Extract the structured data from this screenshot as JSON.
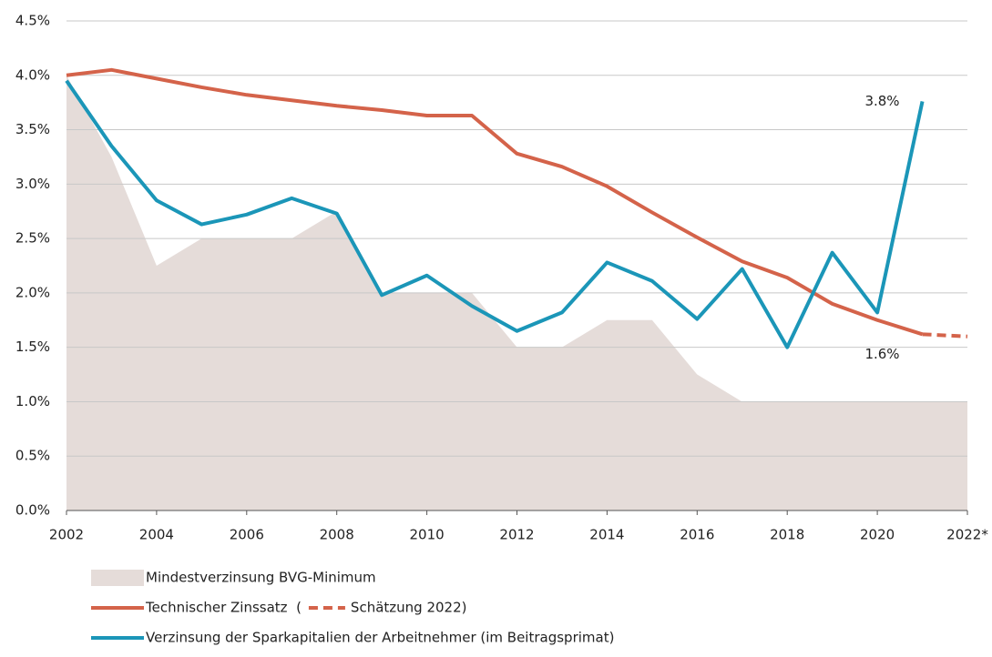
{
  "chart_data": {
    "type": "line",
    "x": [
      2002,
      2003,
      2004,
      2005,
      2006,
      2007,
      2008,
      2009,
      2010,
      2011,
      2012,
      2013,
      2014,
      2015,
      2016,
      2017,
      2018,
      2019,
      2020,
      2021,
      2022
    ],
    "xlim": [
      2002,
      2022
    ],
    "xticks": [
      2002,
      2004,
      2006,
      2008,
      2010,
      2012,
      2014,
      2016,
      2018,
      2020,
      {
        "value": 2022,
        "label": "2022*"
      }
    ],
    "ylim": [
      0,
      4.5
    ],
    "yticks": [
      {
        "value": 0,
        "label": "0.0%"
      },
      {
        "value": 0.5,
        "label": "0.5%"
      },
      {
        "value": 1,
        "label": "1.0%"
      },
      {
        "value": 1.5,
        "label": "1.5%"
      },
      {
        "value": 2,
        "label": "2.0%"
      },
      {
        "value": 2.5,
        "label": "2.5%"
      },
      {
        "value": 3,
        "label": "3.0%"
      },
      {
        "value": 3.5,
        "label": "3.5%"
      },
      {
        "value": 4,
        "label": "4.0%"
      },
      {
        "value": 4.5,
        "label": "4.5%"
      }
    ],
    "grid": true,
    "legend": "bottom-left",
    "series": [
      {
        "name": "Mindestverzinsung BVG-Minimum",
        "type": "area",
        "color": "#e5dcd9",
        "values": [
          4.0,
          3.25,
          2.25,
          2.5,
          2.5,
          2.5,
          2.75,
          2.0,
          2.0,
          2.0,
          1.5,
          1.5,
          1.75,
          1.75,
          1.25,
          1.0,
          1.0,
          1.0,
          1.0,
          1.0,
          1.0
        ]
      },
      {
        "name": "Technischer Zinssatz  (",
        "type": "line",
        "color": "#d4634a",
        "values": [
          4.0,
          4.05,
          3.97,
          3.89,
          3.82,
          3.77,
          3.72,
          3.68,
          3.63,
          3.63,
          3.28,
          3.16,
          2.98,
          2.74,
          2.51,
          2.29,
          2.14,
          1.9,
          1.75,
          1.62,
          null
        ],
        "value_labels": [
          null,
          null,
          null,
          null,
          null,
          null,
          null,
          null,
          null,
          null,
          null,
          null,
          null,
          null,
          null,
          null,
          null,
          null,
          null,
          "1.6%",
          null
        ]
      },
      {
        "name": "Schätzung 2022)",
        "type": "line",
        "color": "#d4634a",
        "dashed": true,
        "legend_inline": true,
        "values": [
          null,
          null,
          null,
          null,
          null,
          null,
          null,
          null,
          null,
          null,
          null,
          null,
          null,
          null,
          null,
          null,
          null,
          null,
          null,
          1.62,
          1.6
        ]
      },
      {
        "name": "Verzinsung der Sparkapitalien der Arbeitnehmer (im Beitragsprimat)",
        "type": "line",
        "color": "#1b96b8",
        "values": [
          3.95,
          3.35,
          2.85,
          2.63,
          2.72,
          2.87,
          2.73,
          1.98,
          2.16,
          1.88,
          1.65,
          1.82,
          2.28,
          2.11,
          1.76,
          2.22,
          1.5,
          2.37,
          1.82,
          3.76,
          null
        ],
        "value_labels": [
          null,
          null,
          null,
          null,
          null,
          null,
          null,
          null,
          null,
          null,
          null,
          null,
          null,
          null,
          null,
          null,
          null,
          null,
          null,
          "3.8%",
          null
        ]
      }
    ]
  }
}
